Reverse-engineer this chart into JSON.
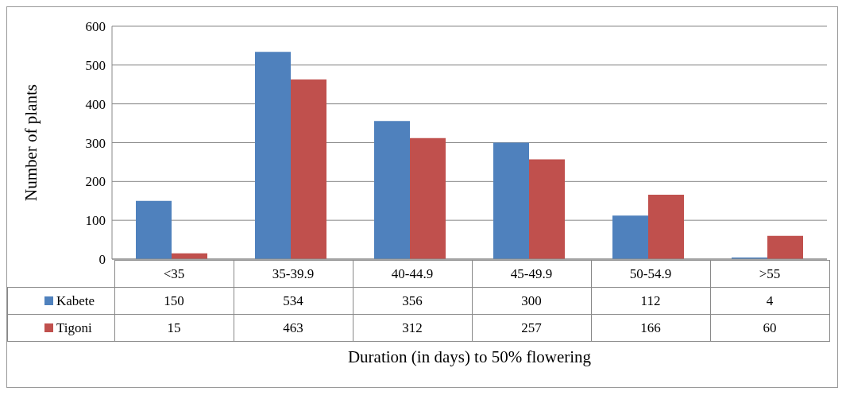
{
  "chart_data": {
    "type": "bar",
    "xlabel": "Duration (in days) to 50% flowering",
    "ylabel": "Number of plants",
    "categories": [
      "<35",
      "35-39.9",
      "40-44.9",
      "45-49.9",
      "50-54.9",
      ">55"
    ],
    "series": [
      {
        "name": "Kabete",
        "color": "#4f81bd",
        "values": [
          150,
          534,
          356,
          300,
          112,
          4
        ]
      },
      {
        "name": "Tigoni",
        "color": "#c0504d",
        "values": [
          15,
          463,
          312,
          257,
          166,
          60
        ]
      }
    ],
    "ylim": [
      0,
      600
    ],
    "yticks": [
      0,
      100,
      200,
      300,
      400,
      500,
      600
    ],
    "grid": "y",
    "legend": "bottom",
    "data_labels": true
  }
}
